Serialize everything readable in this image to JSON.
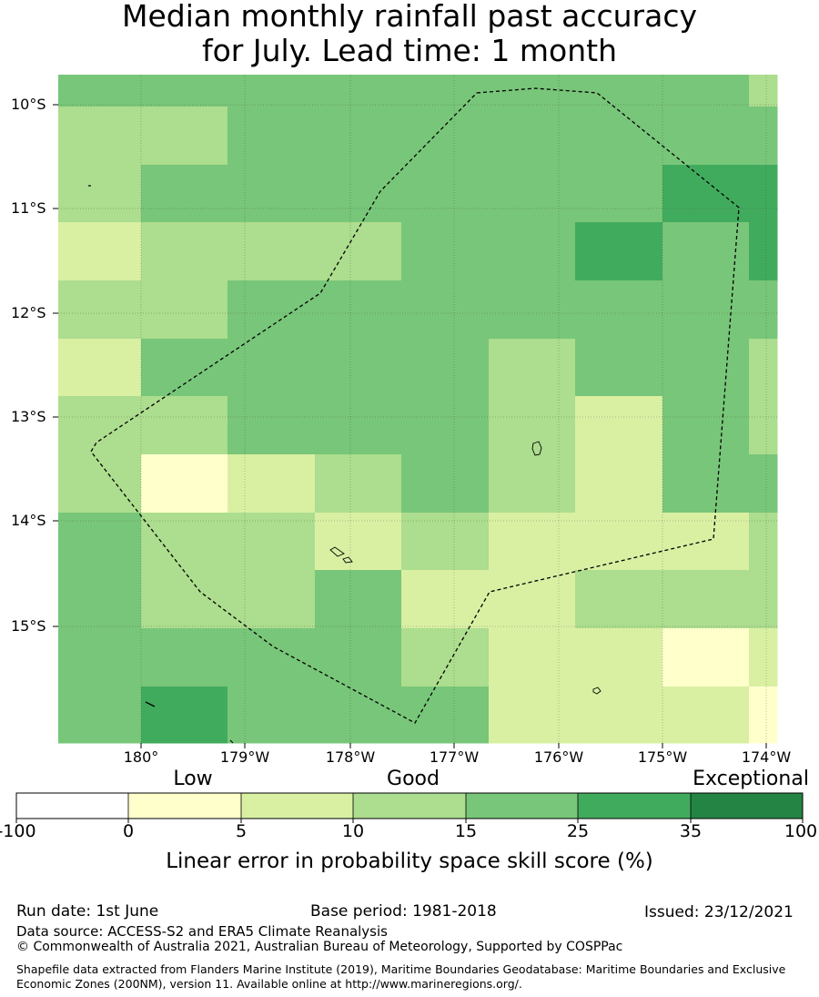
{
  "title": {
    "line1": "Median monthly rainfall past accuracy",
    "line2": "for July. Lead time: 1 month"
  },
  "map": {
    "lat_labels": [
      "10°S",
      "11°S",
      "12°S",
      "13°S",
      "14°S",
      "15°S"
    ],
    "lon_labels": [
      "180°",
      "179°W",
      "178°W",
      "177°W",
      "176°W",
      "175°W",
      "174°W"
    ],
    "grid_categories": [
      [
        4,
        4,
        4,
        4,
        4,
        4,
        4,
        4,
        3
      ],
      [
        3,
        3,
        4,
        4,
        4,
        4,
        4,
        4,
        4
      ],
      [
        3,
        4,
        4,
        4,
        4,
        4,
        4,
        5,
        5
      ],
      [
        2,
        3,
        3,
        3,
        4,
        4,
        5,
        4,
        5
      ],
      [
        3,
        3,
        4,
        4,
        4,
        4,
        4,
        4,
        4
      ],
      [
        2,
        4,
        4,
        4,
        4,
        3,
        4,
        4,
        3
      ],
      [
        3,
        3,
        4,
        4,
        4,
        3,
        2,
        4,
        3
      ],
      [
        3,
        1,
        2,
        3,
        4,
        3,
        2,
        4,
        4
      ],
      [
        4,
        3,
        3,
        2,
        3,
        2,
        2,
        2,
        3
      ],
      [
        4,
        3,
        3,
        4,
        2,
        2,
        3,
        3,
        3
      ],
      [
        4,
        4,
        4,
        4,
        3,
        2,
        2,
        1,
        2
      ],
      [
        4,
        5,
        4,
        4,
        4,
        2,
        2,
        2,
        1
      ]
    ]
  },
  "legend": {
    "categories": [
      "Low",
      "Good",
      "Exceptional"
    ],
    "ticks": [
      "-100",
      "0",
      "5",
      "10",
      "15",
      "25",
      "35",
      "100"
    ],
    "colors": [
      "#ffffff",
      "#ffffcc",
      "#d9f0a3",
      "#addd8e",
      "#78c679",
      "#41ab5d",
      "#238443"
    ],
    "label": "Linear error in probability space skill score (%)"
  },
  "footer": {
    "run_date": "Run date: 1st June",
    "base_period": "Base period: 1981-2018",
    "issued": "Issued: 23/12/2021",
    "data_source": "Data source: ACCESS-S2 and ERA5 Climate Reanalysis",
    "copyright": "© Commonwealth of Australia 2021, Australian Bureau of Meteorology, Supported by COSPPac",
    "shapefile": "Shapefile data extracted from Flanders Marine Institute (2019), Maritime Boundaries Geodatabase: Maritime Boundaries and Exclusive Economic Zones (200NM), version 11. Available online at http://www.marineregions.org/."
  }
}
